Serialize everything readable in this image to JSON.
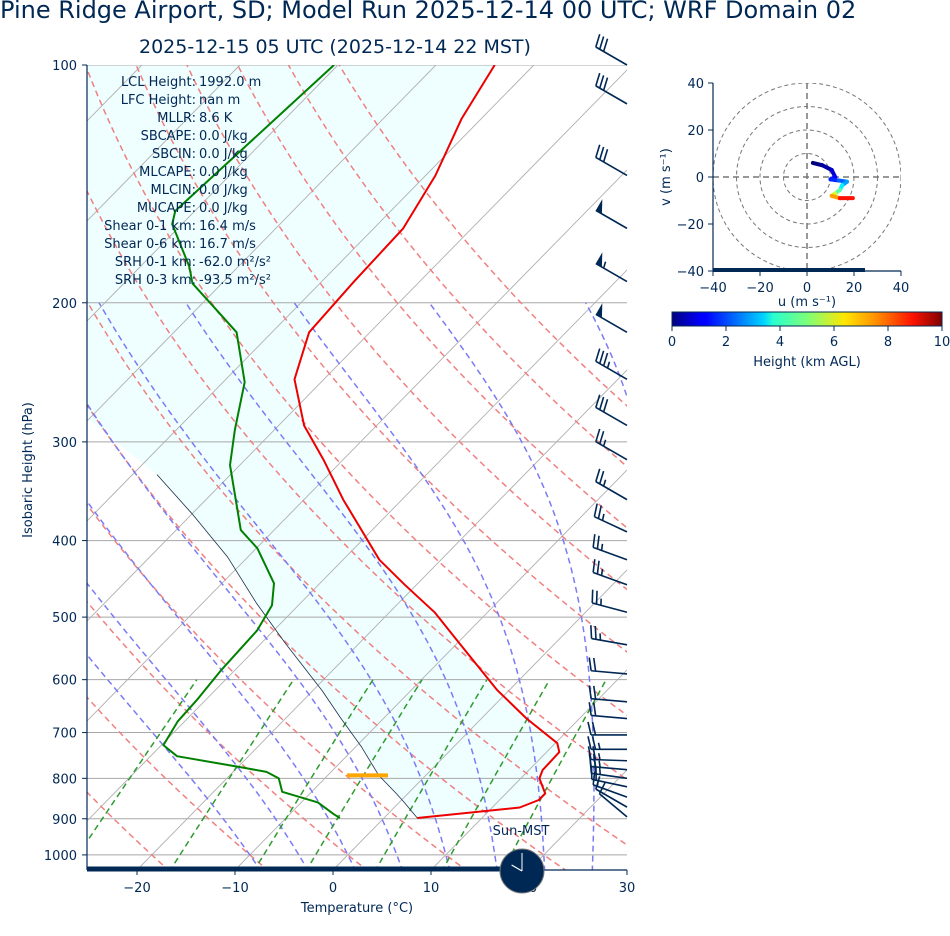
{
  "header": {
    "title": "Pine Ridge Airport, SD; Model Run 2025-12-14 00 UTC; WRF Domain 02",
    "subtitle": "2025-12-15 05 UTC  (2025-12-14 22 MST)"
  },
  "colors": {
    "text": "#002855",
    "temperature": "#ee0000",
    "dewpoint": "#008000",
    "dry_adiabat": "#f08080",
    "moist_adiabat": "#7b7bf5",
    "mixing_ratio": "#2e9b2e",
    "isotherm": "#b0b0b0",
    "isobar": "#a8a8a8",
    "cape_fill": "#effeff",
    "lcl": "#ffa500",
    "barb": "#002855"
  },
  "stats": [
    {
      "label": "LCL Height:",
      "value": "1992.0 m"
    },
    {
      "label": "LFC Height:",
      "value": "nan m"
    },
    {
      "label": "MLLR:",
      "value": "8.6 K"
    },
    {
      "label": "SBCAPE:",
      "value": "0.0 J/kg"
    },
    {
      "label": "SBCIN:",
      "value": "0.0 J/kg"
    },
    {
      "label": "MLCAPE:",
      "value": "0.0 J/kg"
    },
    {
      "label": "MLCIN:",
      "value": "0.0 J/kg"
    },
    {
      "label": "MUCAPE:",
      "value": "0.0 J/kg"
    },
    {
      "label": "Shear 0-1 km:",
      "value": "16.4 m/s"
    },
    {
      "label": "Shear 0-6 km:",
      "value": "16.7 m/s"
    },
    {
      "label": "SRH 0-1 km:",
      "value": "-62.0 m²/s²"
    },
    {
      "label": "SRH 0-3 km:",
      "value": "-93.5 m²/s²"
    }
  ],
  "sun_clock": {
    "label": "Sun-MST",
    "hour": 22
  },
  "chart_data": [
    {
      "type": "line",
      "name": "skew-t",
      "xlabel": "Temperature (°C)",
      "ylabel": "Isobaric Height (hPa)",
      "xlim": [
        -25,
        30
      ],
      "ylim": [
        1045,
        100
      ],
      "xticks": [
        -20,
        -10,
        0,
        10,
        20,
        30
      ],
      "xtick_labels": [
        "−20",
        "−10",
        "0",
        "10",
        "20",
        "30"
      ],
      "yticks": [
        100,
        200,
        300,
        400,
        500,
        600,
        700,
        800,
        900,
        1000
      ],
      "dry_adiabats_C": [
        -20,
        -10,
        0,
        10,
        20,
        30,
        40,
        50,
        60,
        70,
        80,
        90,
        100
      ],
      "moist_adiabats_C": [
        -10,
        -5,
        0,
        5,
        10,
        15,
        20,
        25,
        30
      ],
      "mixing_ratios_gkg": [
        0.4,
        1,
        2,
        3,
        5,
        8,
        12
      ],
      "series": [
        {
          "name": "Temperature",
          "p": [
            898,
            871,
            852,
            836,
            800,
            781,
            741,
            722,
            672,
            618,
            542,
            493,
            455,
            423,
            355,
            316,
            286,
            250,
            218,
            188,
            161,
            138,
            117,
            100
          ],
          "T": [
            3.4,
            12.8,
            14.0,
            14.0,
            11.9,
            11.4,
            11.3,
            10.2,
            4.6,
            -1.3,
            -9.5,
            -15.4,
            -21.2,
            -26.3,
            -36.0,
            -42.0,
            -47.4,
            -53.0,
            -56.2,
            -56.7,
            -57.0,
            -59.0,
            -62.0,
            -64.0
          ]
        },
        {
          "name": "Dewpoint",
          "p": [
            898,
            888,
            858,
            832,
            800,
            785,
            775,
            750,
            726,
            678,
            636,
            583,
            520,
            483,
            453,
            409,
            388,
            321,
            290,
            252,
            218,
            207,
            189,
            180,
            159,
            153,
            100
          ],
          "T": [
            -4.5,
            -5.5,
            -8.3,
            -13.0,
            -14.7,
            -16.6,
            -19.5,
            -27.3,
            -29.8,
            -30.7,
            -30.9,
            -31.4,
            -31.7,
            -32.7,
            -34.7,
            -39.9,
            -43.4,
            -51.0,
            -54.0,
            -57.8,
            -63.6,
            -67.0,
            -73.0,
            -75.0,
            -81.0,
            -82.0,
            -80.4
          ]
        },
        {
          "name": "Parcel",
          "p": [
            898,
            858,
            836,
            793,
            730,
            670,
            620,
            540,
            480,
            420,
            370,
            330
          ],
          "T": [
            3.4,
            0.5,
            -1.2,
            -4.8,
            -9.4,
            -14.5,
            -19.0,
            -27.5,
            -34.5,
            -42.0,
            -50.0,
            -57.5
          ]
        }
      ],
      "lcl_p": 793,
      "wind_barbs": [
        {
          "p": 100,
          "dir": 300,
          "kt": 30
        },
        {
          "p": 112,
          "dir": 300,
          "kt": 30
        },
        {
          "p": 138,
          "dir": 300,
          "kt": 30
        },
        {
          "p": 161,
          "dir": 300,
          "kt": 50
        },
        {
          "p": 188,
          "dir": 300,
          "kt": 55
        },
        {
          "p": 218,
          "dir": 300,
          "kt": 50
        },
        {
          "p": 250,
          "dir": 300,
          "kt": 35
        },
        {
          "p": 286,
          "dir": 300,
          "kt": 30
        },
        {
          "p": 316,
          "dir": 300,
          "kt": 25
        },
        {
          "p": 355,
          "dir": 300,
          "kt": 25
        },
        {
          "p": 390,
          "dir": 295,
          "kt": 25
        },
        {
          "p": 423,
          "dir": 290,
          "kt": 25
        },
        {
          "p": 455,
          "dir": 290,
          "kt": 25
        },
        {
          "p": 493,
          "dir": 285,
          "kt": 25
        },
        {
          "p": 542,
          "dir": 280,
          "kt": 25
        },
        {
          "p": 590,
          "dir": 275,
          "kt": 20
        },
        {
          "p": 640,
          "dir": 275,
          "kt": 20
        },
        {
          "p": 672,
          "dir": 275,
          "kt": 20
        },
        {
          "p": 705,
          "dir": 270,
          "kt": 20
        },
        {
          "p": 735,
          "dir": 270,
          "kt": 25
        },
        {
          "p": 760,
          "dir": 272,
          "kt": 25
        },
        {
          "p": 780,
          "dir": 275,
          "kt": 25
        },
        {
          "p": 800,
          "dir": 278,
          "kt": 25
        },
        {
          "p": 820,
          "dir": 282,
          "kt": 20
        },
        {
          "p": 845,
          "dir": 290,
          "kt": 15
        },
        {
          "p": 870,
          "dir": 300,
          "kt": 10
        },
        {
          "p": 895,
          "dir": 310,
          "kt": 10
        }
      ]
    },
    {
      "type": "line",
      "name": "hodograph",
      "xlabel": "u (m s⁻¹)",
      "ylabel": "v (m s⁻¹)",
      "xlim": [
        -40,
        40
      ],
      "ylim": [
        -40,
        40
      ],
      "xticks": [
        -40,
        -20,
        0,
        20,
        40
      ],
      "xtick_labels": [
        "−40",
        "−20",
        "0",
        "20",
        "40"
      ],
      "yticks": [
        40,
        20,
        0,
        -20,
        -40
      ],
      "ytick_labels": [
        "40",
        "20",
        "0",
        "−20",
        "−40"
      ],
      "rings": [
        10,
        20,
        30,
        40
      ],
      "trace": {
        "u": [
          2.5,
          6.5,
          10.5,
          12.0,
          10.0,
          13.5,
          17.0,
          15.0,
          14.0,
          12.0,
          10.5,
          14.0,
          19.5
        ],
        "v": [
          6.0,
          5.0,
          3.0,
          0.0,
          -1.0,
          -1.5,
          -2.0,
          -3.5,
          -5.5,
          -7.0,
          -8.0,
          -9.0,
          -9.0
        ],
        "height_km": [
          0.0,
          0.4,
          0.8,
          1.2,
          1.6,
          2.2,
          2.8,
          3.6,
          4.6,
          5.8,
          7.2,
          8.6,
          10.0
        ]
      },
      "colorbar": {
        "label": "Height (km AGL)",
        "range": [
          0,
          10
        ],
        "ticks": [
          0,
          2,
          4,
          6,
          8,
          10
        ],
        "colormap": "jet"
      }
    }
  ]
}
